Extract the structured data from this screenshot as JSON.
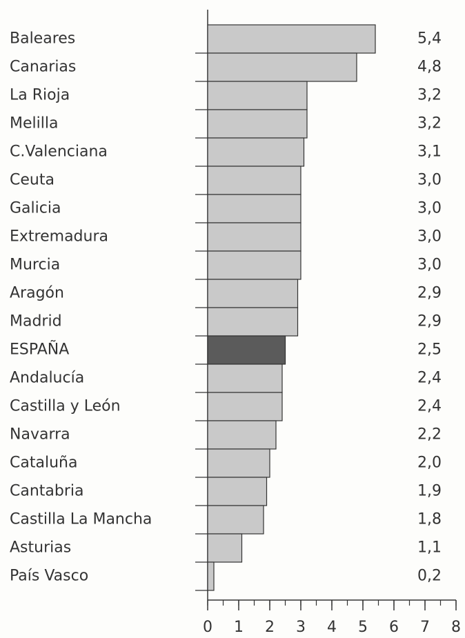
{
  "chart_data": {
    "type": "barh",
    "categories": [
      "Baleares",
      "Canarias",
      "La Rioja",
      "Melilla",
      "C.Valenciana",
      "Ceuta",
      "Galicia",
      "Extremadura",
      "Murcia",
      "Aragón",
      "Madrid",
      "ESPAÑA",
      "Andalucía",
      "Castilla y León",
      "Navarra",
      "Cataluña",
      "Cantabria",
      "Castilla La Mancha",
      "Asturias",
      "País Vasco"
    ],
    "values": [
      5.4,
      4.8,
      3.2,
      3.2,
      3.1,
      3.0,
      3.0,
      3.0,
      3.0,
      2.9,
      2.9,
      2.5,
      2.4,
      2.4,
      2.2,
      2.0,
      1.9,
      1.8,
      1.1,
      0.2
    ],
    "value_labels": [
      "5,4",
      "4,8",
      "3,2",
      "3,2",
      "3,1",
      "3,0",
      "3,0",
      "3,0",
      "3,0",
      "2,9",
      "2,9",
      "2,5",
      "2,4",
      "2,4",
      "2,2",
      "2,0",
      "1,9",
      "1,8",
      "1,1",
      "0,2"
    ],
    "colors": [
      "#c9c9c9",
      "#c9c9c9",
      "#c9c9c9",
      "#c9c9c9",
      "#c9c9c9",
      "#c9c9c9",
      "#c9c9c9",
      "#c9c9c9",
      "#c9c9c9",
      "#c9c9c9",
      "#c9c9c9",
      "#5b5b5b",
      "#c9c9c9",
      "#c9c9c9",
      "#c9c9c9",
      "#c9c9c9",
      "#c9c9c9",
      "#c9c9c9",
      "#c9c9c9",
      "#c9c9c9"
    ],
    "xlim": [
      0,
      8
    ],
    "xticks": [
      0,
      1,
      2,
      3,
      4,
      5,
      6,
      7,
      8
    ]
  }
}
